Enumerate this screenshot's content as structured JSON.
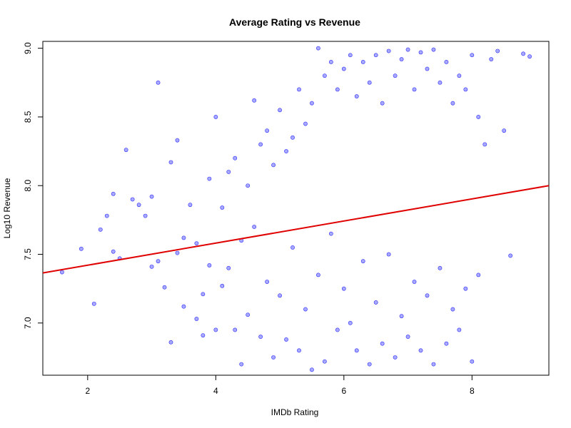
{
  "chart_data": {
    "type": "scatter",
    "title": "Average Rating vs Revenue",
    "xlabel": "IMDb Rating",
    "ylabel": "Log10 Revenue",
    "xlim": [
      1.3,
      9.2
    ],
    "ylim": [
      6.62,
      9.05
    ],
    "x_ticks": [
      2,
      4,
      6,
      8
    ],
    "y_ticks": [
      7.0,
      7.5,
      8.0,
      8.5,
      9.0
    ],
    "grid": false,
    "colors": {
      "points_fill": "rgba(64,64,255,0.45)",
      "points_stroke": "#2a2aff",
      "regression_line": "#e00000"
    },
    "regression": {
      "intercept": 7.26,
      "slope": 0.0804
    },
    "series": [
      {
        "kind": "points",
        "x": [
          1.6,
          1.9,
          2.1,
          2.2,
          2.3,
          2.4,
          2.4,
          2.5,
          2.6,
          2.7,
          2.8,
          2.9,
          3.0,
          3.0,
          3.1,
          3.1,
          3.2,
          3.3,
          3.3,
          3.4,
          3.4,
          3.5,
          3.5,
          3.6,
          3.7,
          3.7,
          3.8,
          3.8,
          3.9,
          3.9,
          4.0,
          4.0,
          4.1,
          4.1,
          4.2,
          4.2,
          4.3,
          4.3,
          4.4,
          4.4,
          4.5,
          4.5,
          4.6,
          4.6,
          4.7,
          4.7,
          4.8,
          4.8,
          4.9,
          4.9,
          5.0,
          5.0,
          5.1,
          5.1,
          5.2,
          5.2,
          5.3,
          5.3,
          5.4,
          5.4,
          5.5,
          5.5,
          5.6,
          5.6,
          5.7,
          5.7,
          5.8,
          5.8,
          5.9,
          5.9,
          6.0,
          6.0,
          6.1,
          6.1,
          6.2,
          6.2,
          6.3,
          6.3,
          6.4,
          6.4,
          6.5,
          6.5,
          6.6,
          6.6,
          6.7,
          6.7,
          6.8,
          6.8,
          6.9,
          6.9,
          7.0,
          7.0,
          7.1,
          7.1,
          7.2,
          7.2,
          7.3,
          7.3,
          7.4,
          7.4,
          7.5,
          7.5,
          7.6,
          7.6,
          7.7,
          7.7,
          7.8,
          7.8,
          7.9,
          7.9,
          8.0,
          8.0,
          8.1,
          8.1,
          8.2,
          8.3,
          8.4,
          8.5,
          8.6,
          8.8,
          8.9
        ],
        "y": [
          7.37,
          7.54,
          7.14,
          7.68,
          7.78,
          7.94,
          7.52,
          7.47,
          8.26,
          7.9,
          7.86,
          7.78,
          7.92,
          7.41,
          8.75,
          7.45,
          7.26,
          8.17,
          6.86,
          8.33,
          7.51,
          7.62,
          7.12,
          7.86,
          7.58,
          7.03,
          7.21,
          6.91,
          8.05,
          7.42,
          8.5,
          6.95,
          7.84,
          7.27,
          8.1,
          7.4,
          8.2,
          6.95,
          7.6,
          6.7,
          8.0,
          7.06,
          8.62,
          7.7,
          8.3,
          6.9,
          8.4,
          7.3,
          8.15,
          6.75,
          8.55,
          7.2,
          8.25,
          6.88,
          8.35,
          7.55,
          8.7,
          6.8,
          8.45,
          7.1,
          8.6,
          6.66,
          9.0,
          7.35,
          8.8,
          6.72,
          8.9,
          7.65,
          8.7,
          6.95,
          8.85,
          7.25,
          8.95,
          7.0,
          8.65,
          6.8,
          8.9,
          7.45,
          8.75,
          6.7,
          8.95,
          7.15,
          8.6,
          6.85,
          8.98,
          7.5,
          8.8,
          6.75,
          8.92,
          7.05,
          8.99,
          6.9,
          8.7,
          7.3,
          8.97,
          6.8,
          8.85,
          7.2,
          8.99,
          6.7,
          8.75,
          7.4,
          8.9,
          6.85,
          8.6,
          7.1,
          8.8,
          6.95,
          8.7,
          7.25,
          8.95,
          6.72,
          8.5,
          7.35,
          8.3,
          8.92,
          8.98,
          8.4,
          7.49,
          8.96,
          8.94
        ]
      }
    ]
  }
}
